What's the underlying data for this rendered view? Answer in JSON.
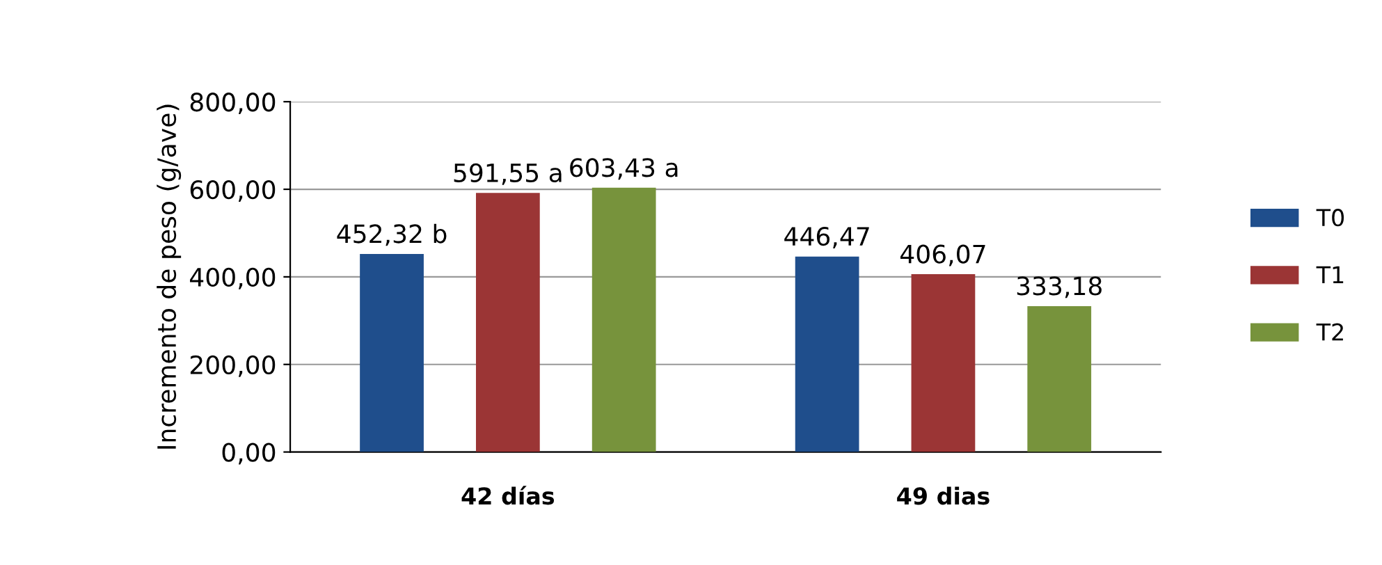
{
  "chart_data": {
    "type": "bar",
    "ylabel": "Incremento de peso (g/ave)",
    "categories": [
      "42 días",
      "49 dias"
    ],
    "series": [
      {
        "name": "T0",
        "color": "#1f4e8c",
        "values": [
          452.32,
          446.47
        ],
        "value_labels": [
          "452,32 b",
          "446,47"
        ]
      },
      {
        "name": "T1",
        "color": "#9b3535",
        "values": [
          591.55,
          406.07
        ],
        "value_labels": [
          "591,55 a",
          "406,07"
        ]
      },
      {
        "name": "T2",
        "color": "#77933c",
        "values": [
          603.43,
          333.18
        ],
        "value_labels": [
          "603,43 a",
          "333,18"
        ]
      }
    ],
    "ylim": [
      0,
      800
    ],
    "yticks": [
      {
        "value": 0,
        "label": "0,00"
      },
      {
        "value": 200,
        "label": "200,00"
      },
      {
        "value": 400,
        "label": "400,00"
      },
      {
        "value": 600,
        "label": "600,00"
      },
      {
        "value": 800,
        "label": "800,00"
      }
    ],
    "grid": "y",
    "legend": "right"
  }
}
